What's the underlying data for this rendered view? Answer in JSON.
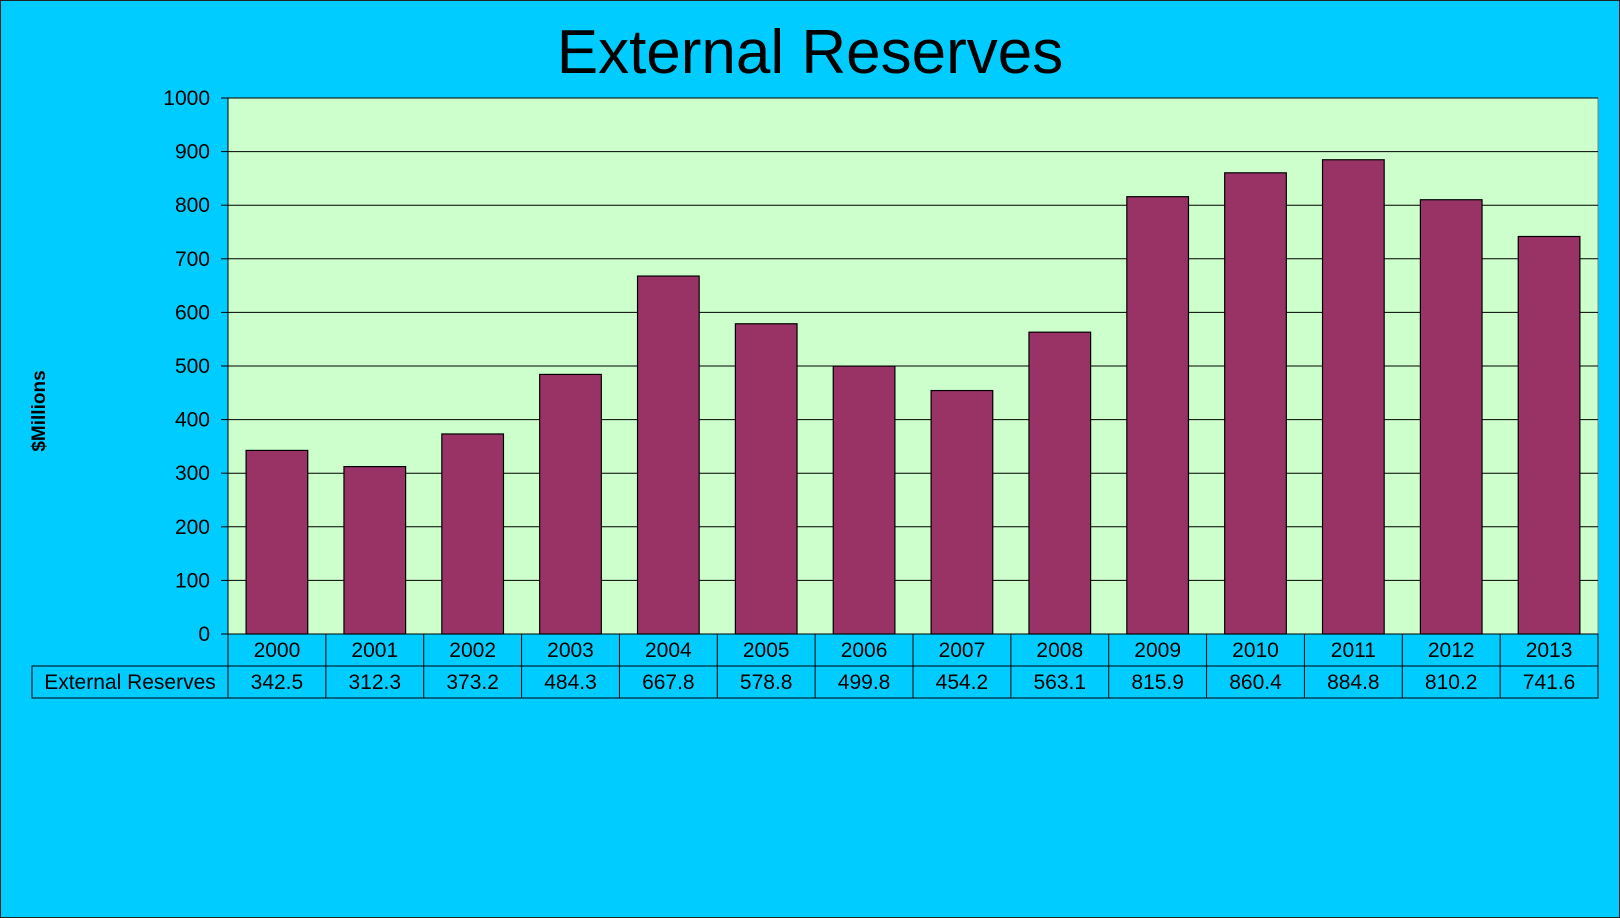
{
  "chart_data": {
    "type": "bar",
    "title": "External Reserves",
    "ylabel": "$Millions",
    "xlabel": "",
    "ylim": [
      0,
      1000
    ],
    "yticks": [
      0,
      100,
      200,
      300,
      400,
      500,
      600,
      700,
      800,
      900,
      1000
    ],
    "grid": true,
    "legend": "none",
    "categories": [
      "2000",
      "2001",
      "2002",
      "2003",
      "2004",
      "2005",
      "2006",
      "2007",
      "2008",
      "2009",
      "2010",
      "2011",
      "2012",
      "2013"
    ],
    "series": [
      {
        "name": "External Reserves",
        "values": [
          342.5,
          312.3,
          373.2,
          484.3,
          667.8,
          578.8,
          499.8,
          454.2,
          563.1,
          815.9,
          860.4,
          884.8,
          810.2,
          741.6
        ]
      }
    ],
    "data_table": {
      "row_label": "External Reserves",
      "values": [
        "342.5",
        "312.3",
        "373.2",
        "484.3",
        "667.8",
        "578.8",
        "499.8",
        "454.2",
        "563.1",
        "815.9",
        "860.4",
        "884.8",
        "810.2",
        "741.6"
      ]
    }
  },
  "colors": {
    "background": "#00CCFF",
    "plot_area": "#CCFFCC",
    "bar_fill": "#993366",
    "bar_stroke": "#000000",
    "gridline": "#000000"
  }
}
